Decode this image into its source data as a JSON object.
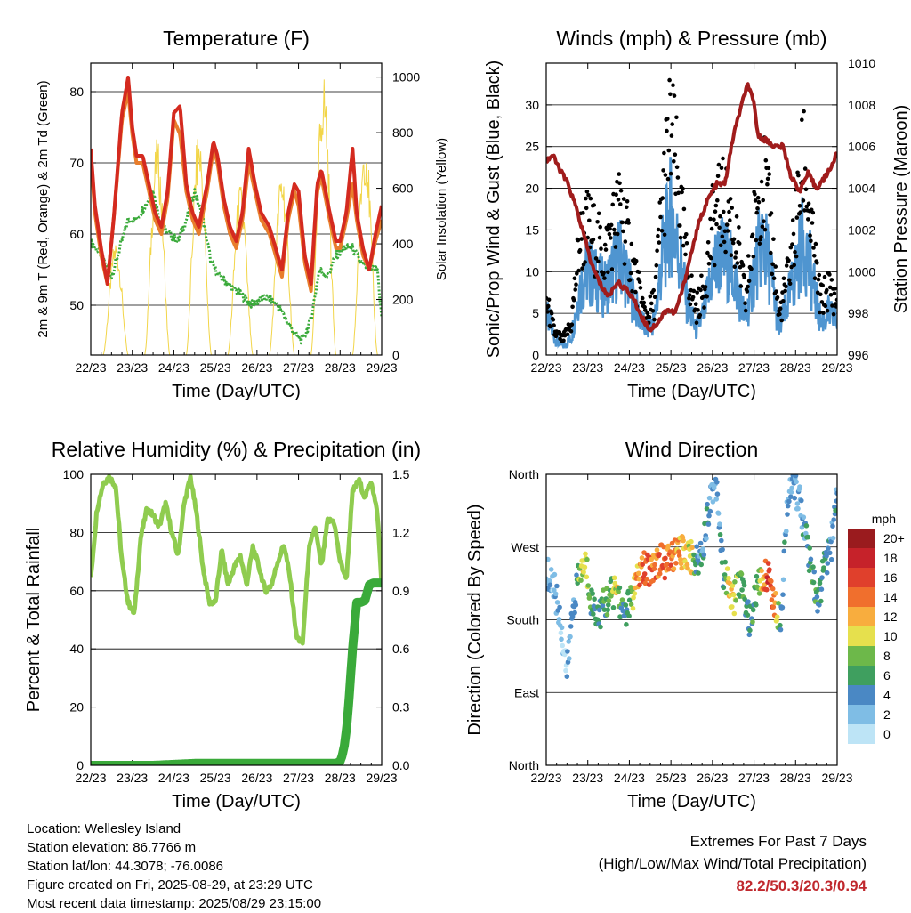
{
  "chart_data": [
    {
      "type": "line",
      "title": "Temperature (F)",
      "xlabel": "Time (Day/UTC)",
      "ylabel": "2m & 9m T (Red, Orange) & 2m Td (Green)",
      "ylabel_right": "Solar Insolation (Yellow)",
      "x_ticks": [
        "22/23",
        "23/23",
        "24/23",
        "25/23",
        "26/23",
        "27/23",
        "28/23",
        "29/23"
      ],
      "x_range": [
        0,
        7
      ],
      "ylim": [
        43,
        84
      ],
      "ylim_right": [
        0,
        1050
      ],
      "y_ticks": [
        50,
        60,
        70,
        80
      ],
      "y_ticks_right": [
        0,
        200,
        400,
        600,
        800,
        1000
      ],
      "grid": true,
      "series": [
        {
          "axis": "left",
          "color": "#e87d2c",
          "x": [
            0,
            0.1,
            0.25,
            0.4,
            0.55,
            0.75,
            0.9,
            1.0,
            1.1,
            1.25,
            1.4,
            1.55,
            1.7,
            1.85,
            2.0,
            2.15,
            2.3,
            2.45,
            2.6,
            2.8,
            2.95,
            3.05,
            3.2,
            3.35,
            3.5,
            3.65,
            3.8,
            3.95,
            4.1,
            4.3,
            4.5,
            4.6,
            4.75,
            4.9,
            5.0,
            5.15,
            5.3,
            5.45,
            5.55,
            5.75,
            5.9,
            6.0,
            6.15,
            6.3,
            6.4,
            6.55,
            6.7,
            6.85,
            7.0
          ],
          "y": [
            71,
            63,
            57,
            53,
            62,
            76,
            80,
            74,
            70,
            70,
            66,
            62,
            60,
            65,
            76,
            74,
            66,
            62,
            60,
            66,
            72,
            70,
            64,
            60,
            58,
            62,
            70,
            66,
            62,
            60,
            56,
            54,
            62,
            66,
            64,
            56,
            52,
            66,
            68,
            62,
            58,
            58,
            62,
            67,
            62,
            57,
            55,
            59,
            62
          ]
        },
        {
          "axis": "left",
          "color": "#d42a1f",
          "x": [
            0,
            0.1,
            0.25,
            0.4,
            0.55,
            0.75,
            0.9,
            1.0,
            1.1,
            1.25,
            1.4,
            1.55,
            1.7,
            1.85,
            2.0,
            2.15,
            2.3,
            2.45,
            2.6,
            2.8,
            2.95,
            3.05,
            3.2,
            3.35,
            3.5,
            3.65,
            3.8,
            3.95,
            4.1,
            4.3,
            4.5,
            4.6,
            4.75,
            4.9,
            5.0,
            5.15,
            5.3,
            5.45,
            5.55,
            5.75,
            5.9,
            6.0,
            6.15,
            6.3,
            6.4,
            6.55,
            6.7,
            6.85,
            7.0
          ],
          "y": [
            72,
            64,
            58,
            53,
            62,
            77,
            82,
            75,
            71,
            71,
            67,
            63,
            61,
            66,
            77,
            78,
            67,
            63,
            61,
            67,
            73,
            71,
            65,
            61,
            59,
            63,
            72,
            67,
            63,
            61,
            57,
            55,
            63,
            67,
            66,
            57,
            53,
            67,
            69,
            63,
            59,
            59,
            63,
            72,
            63,
            58,
            55,
            60,
            64
          ]
        },
        {
          "axis": "left",
          "color": "#3aaa3a",
          "x": [
            0,
            0.25,
            0.5,
            0.7,
            0.9,
            1.1,
            1.3,
            1.5,
            1.7,
            1.9,
            2.1,
            2.3,
            2.5,
            2.7,
            2.9,
            3.1,
            3.3,
            3.5,
            3.7,
            3.9,
            4.1,
            4.3,
            4.5,
            4.7,
            4.9,
            5.1,
            5.3,
            5.5,
            5.7,
            5.9,
            6.1,
            6.3,
            6.5,
            6.7,
            6.9,
            7.0
          ],
          "y": [
            59,
            57,
            54,
            58,
            62,
            62,
            64,
            66,
            61,
            60,
            59,
            62,
            66,
            62,
            56,
            54,
            53,
            52,
            51,
            50,
            51,
            51,
            50,
            48,
            46,
            45,
            48,
            55,
            54,
            57,
            58,
            58,
            56,
            55,
            55,
            48
          ]
        },
        {
          "axis": "right",
          "color": "#f2d548",
          "kind": "daily_pulse",
          "peaks": [
            420,
            780,
            820,
            620,
            680,
            1030,
            810
          ],
          "noon_offsets": [
            0.6,
            1.6,
            2.6,
            3.6,
            4.6,
            5.6,
            6.6
          ]
        }
      ]
    },
    {
      "type": "line",
      "title": "Winds (mph) & Pressure (mb)",
      "xlabel": "Time (Day/UTC)",
      "ylabel": "Sonic/Prop Wind & Gust (Blue, Black)",
      "ylabel_right": "Station Pressure (Maroon)",
      "x_ticks": [
        "22/23",
        "23/23",
        "24/23",
        "25/23",
        "26/23",
        "27/23",
        "28/23",
        "29/23"
      ],
      "x_range": [
        0,
        7
      ],
      "ylim": [
        0,
        35
      ],
      "ylim_right": [
        996,
        1010
      ],
      "y_ticks": [
        0,
        5,
        10,
        15,
        20,
        25,
        30
      ],
      "y_ticks_right": [
        996,
        998,
        1000,
        1002,
        1004,
        1006,
        1008,
        1010
      ],
      "grid": true,
      "series": [
        {
          "axis": "left",
          "color": "#4f95d0",
          "kind": "wind",
          "x": [
            0,
            0.2,
            0.4,
            0.6,
            0.8,
            1.0,
            1.2,
            1.4,
            1.6,
            1.8,
            2.0,
            2.2,
            2.4,
            2.6,
            2.8,
            3.0,
            3.2,
            3.4,
            3.6,
            3.8,
            4.0,
            4.2,
            4.4,
            4.6,
            4.8,
            5.0,
            5.2,
            5.4,
            5.6,
            5.8,
            6.0,
            6.2,
            6.4,
            6.6,
            6.8,
            7.0
          ],
          "y": [
            5,
            2,
            1,
            2,
            8,
            10,
            9,
            8,
            10,
            12,
            8,
            5,
            3,
            4,
            12,
            17,
            12,
            6,
            3,
            5,
            10,
            12,
            11,
            8,
            4,
            10,
            14,
            10,
            3,
            6,
            10,
            14,
            9,
            4,
            5,
            4
          ]
        },
        {
          "axis": "left",
          "color": "#000000",
          "kind": "gust",
          "x": [
            0,
            0.2,
            0.4,
            0.6,
            0.8,
            1.0,
            1.2,
            1.4,
            1.6,
            1.8,
            2.0,
            2.2,
            2.4,
            2.6,
            2.8,
            3.0,
            3.2,
            3.4,
            3.6,
            3.8,
            4.0,
            4.2,
            4.4,
            4.6,
            4.8,
            5.0,
            5.2,
            5.4,
            5.6,
            5.8,
            6.0,
            6.2,
            6.4,
            6.6,
            6.8,
            7.0
          ],
          "y": [
            7,
            3,
            2,
            4,
            15,
            17,
            15,
            13,
            17,
            20,
            14,
            9,
            5,
            7,
            21,
            30,
            21,
            11,
            6,
            9,
            17,
            20,
            19,
            14,
            7,
            17,
            24,
            17,
            5,
            10,
            17,
            26,
            15,
            7,
            9,
            7
          ]
        },
        {
          "axis": "right",
          "color": "#a01c1c",
          "x": [
            0,
            0.15,
            0.3,
            0.5,
            0.7,
            0.9,
            1.1,
            1.3,
            1.5,
            1.7,
            1.9,
            2.1,
            2.3,
            2.5,
            2.7,
            2.9,
            3.1,
            3.3,
            3.5,
            3.7,
            3.9,
            4.1,
            4.3,
            4.5,
            4.7,
            4.85,
            5.0,
            5.1,
            5.3,
            5.5,
            5.7,
            5.9,
            6.1,
            6.3,
            6.5,
            6.7,
            6.9,
            7.0
          ],
          "y": [
            1005.3,
            1005.6,
            1005.0,
            1004.3,
            1003.2,
            1001.8,
            1000.3,
            999.4,
            998.8,
            999.5,
            999.2,
            998.7,
            997.8,
            997.2,
            997.6,
            998.2,
            998.0,
            999.3,
            1001.0,
            1002.5,
            1003.5,
            1004.2,
            1004.2,
            1006.5,
            1008.0,
            1009.0,
            1008.0,
            1006.5,
            1006.3,
            1006.0,
            1006.0,
            1004.5,
            1003.9,
            1004.7,
            1004.0,
            1004.5,
            1005.2,
            1005.7
          ]
        }
      ]
    },
    {
      "type": "line",
      "title": "Relative Humidity (%) & Precipitation (in)",
      "xlabel": "Time (Day/UTC)",
      "ylabel": "Percent & Total Rainfall",
      "x_ticks": [
        "22/23",
        "23/23",
        "24/23",
        "25/23",
        "26/23",
        "27/23",
        "28/23",
        "29/23"
      ],
      "x_range": [
        0,
        7
      ],
      "ylim": [
        0,
        100
      ],
      "ylim_right": [
        0,
        1.5
      ],
      "y_ticks": [
        0,
        20,
        40,
        60,
        80,
        100
      ],
      "y_ticks_right": [
        "0.0",
        "0.3",
        "0.6",
        "0.9",
        "1.2",
        "1.5"
      ],
      "grid": true,
      "series": [
        {
          "axis": "left",
          "color": "#8fcc4f",
          "x": [
            0,
            0.15,
            0.3,
            0.45,
            0.6,
            0.75,
            0.9,
            1.05,
            1.2,
            1.35,
            1.5,
            1.65,
            1.8,
            1.95,
            2.1,
            2.25,
            2.4,
            2.55,
            2.7,
            2.85,
            3.0,
            3.15,
            3.3,
            3.45,
            3.6,
            3.75,
            3.9,
            4.05,
            4.2,
            4.35,
            4.5,
            4.65,
            4.8,
            4.95,
            5.1,
            5.25,
            5.4,
            5.55,
            5.7,
            5.85,
            6.0,
            6.15,
            6.3,
            6.45,
            6.6,
            6.75,
            6.9,
            7.0
          ],
          "y": [
            64,
            88,
            97,
            99,
            96,
            70,
            56,
            52,
            78,
            88,
            86,
            82,
            90,
            80,
            72,
            90,
            99,
            86,
            68,
            56,
            56,
            74,
            62,
            68,
            72,
            62,
            75,
            68,
            60,
            62,
            70,
            76,
            64,
            44,
            42,
            74,
            82,
            68,
            84,
            84,
            70,
            64,
            94,
            98,
            92,
            98,
            86,
            62
          ]
        },
        {
          "axis": "right",
          "color": "#3aaa3a",
          "kind": "cumulative",
          "x": [
            0,
            1.5,
            2.5,
            5.9,
            6.0,
            6.05,
            6.1,
            6.15,
            6.2,
            6.25,
            6.3,
            6.35,
            6.4,
            6.5,
            6.6,
            6.7,
            6.8,
            7.0
          ],
          "y": [
            0,
            0,
            0.01,
            0.01,
            0.02,
            0.05,
            0.1,
            0.18,
            0.3,
            0.45,
            0.6,
            0.72,
            0.84,
            0.84,
            0.85,
            0.93,
            0.94,
            0.94
          ]
        }
      ]
    },
    {
      "type": "scatter",
      "title": "Wind Direction",
      "xlabel": "Time (Day/UTC)",
      "ylabel": "Direction (Colored By Speed)",
      "x_ticks": [
        "22/23",
        "23/23",
        "24/23",
        "25/23",
        "26/23",
        "27/23",
        "28/23",
        "29/23"
      ],
      "x_range": [
        0,
        7
      ],
      "ylim": [
        0,
        360
      ],
      "y_ticks": [
        "North",
        "East",
        "South",
        "West",
        "North"
      ],
      "grid": true,
      "colorbar": {
        "title": "mph",
        "labels": [
          "0",
          "2",
          "4",
          "6",
          "8",
          "10",
          "12",
          "14",
          "16",
          "18",
          "20+"
        ],
        "colors": [
          "#bde4f6",
          "#7fbde5",
          "#4a88c4",
          "#3f9f5f",
          "#6db84a",
          "#e6e04d",
          "#f8ad3e",
          "#f06f2d",
          "#e0402c",
          "#c6222a",
          "#9a1b1e"
        ]
      },
      "points": {
        "x": [
          0.05,
          0.2,
          0.35,
          0.5,
          0.65,
          0.8,
          0.95,
          1.1,
          1.25,
          1.4,
          1.55,
          1.7,
          1.85,
          2.0,
          2.15,
          2.3,
          2.45,
          2.6,
          2.75,
          2.9,
          3.05,
          3.2,
          3.35,
          3.5,
          3.65,
          3.8,
          3.95,
          4.1,
          4.25,
          4.4,
          4.5,
          4.6,
          4.75,
          4.9,
          5.05,
          5.2,
          5.35,
          5.5,
          5.65,
          5.8,
          5.95,
          6.1,
          6.25,
          6.4,
          6.55,
          6.7,
          6.85,
          7.0
        ],
        "y": [
          235,
          220,
          175,
          115,
          200,
          235,
          250,
          200,
          185,
          200,
          210,
          220,
          185,
          200,
          220,
          245,
          240,
          250,
          255,
          250,
          260,
          262,
          265,
          258,
          250,
          280,
          335,
          350,
          240,
          220,
          200,
          230,
          215,
          175,
          215,
          230,
          240,
          195,
          185,
          330,
          345,
          330,
          280,
          230,
          200,
          250,
          265,
          345
        ],
        "speed": [
          3,
          2,
          2,
          2,
          4,
          9,
          10,
          5,
          5,
          6,
          7,
          10,
          5,
          5,
          12,
          14,
          15,
          13,
          14,
          14,
          13,
          12,
          11,
          10,
          4,
          4,
          3,
          3,
          4,
          12,
          10,
          8,
          6,
          5,
          6,
          12,
          16,
          14,
          4,
          3,
          3,
          3,
          4,
          6,
          5,
          4,
          3,
          4
        ]
      }
    }
  ],
  "info": {
    "location": "Location: Wellesley Island",
    "elevation": "Station elevation: 86.7766 m",
    "latlon": "Station lat/lon: 44.3078; -76.0086",
    "created": "Figure created on Fri, 2025-08-29, at 23:29 UTC",
    "recent": "Most recent data timestamp: 2025/08/29 23:15:00"
  },
  "extremes": {
    "line1": "Extremes For Past 7 Days",
    "line2": "(High/Low/Max Wind/Total Precipitation)",
    "values": "82.2/50.3/20.3/0.94"
  }
}
